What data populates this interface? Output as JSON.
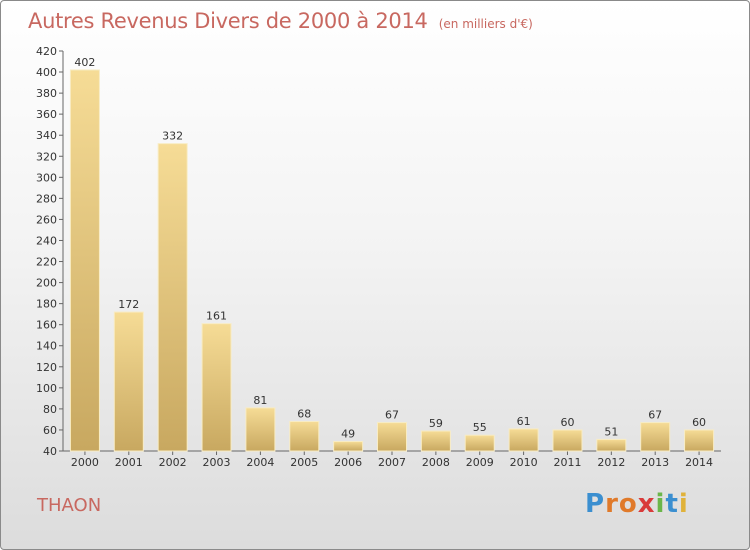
{
  "chart_data": {
    "type": "bar",
    "title": "Autres Revenus Divers de 2000 à 2014",
    "subtitle": "(en milliers d'€)",
    "categories": [
      "2000",
      "2001",
      "2002",
      "2003",
      "2004",
      "2005",
      "2006",
      "2007",
      "2008",
      "2009",
      "2010",
      "2011",
      "2012",
      "2013",
      "2014"
    ],
    "values": [
      402,
      172,
      332,
      161,
      81,
      68,
      49,
      67,
      59,
      55,
      61,
      60,
      51,
      67,
      60
    ],
    "ylim": [
      40,
      420
    ],
    "yticks": [
      40,
      60,
      80,
      100,
      120,
      140,
      160,
      180,
      200,
      220,
      240,
      260,
      280,
      300,
      320,
      340,
      360,
      380,
      400,
      420
    ],
    "grid": false,
    "bar_color": "#e8c97a"
  },
  "footer": {
    "town": "THAON",
    "logo_letters": [
      "P",
      "r",
      "o",
      "x",
      "i",
      "t",
      "i"
    ],
    "logo_colors": [
      "#3b8fd0",
      "#e07a2a",
      "#e07a2a",
      "#d93b3b",
      "#6bb64a",
      "#3b8fd0",
      "#e0b23a"
    ]
  }
}
